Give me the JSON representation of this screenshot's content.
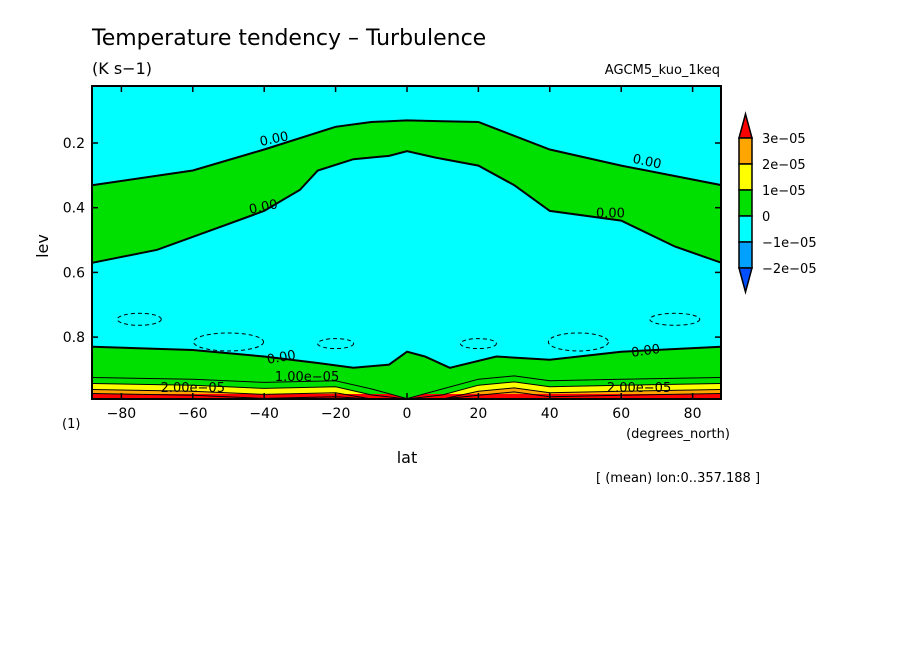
{
  "chart_data": {
    "type": "contour",
    "title": "Temperature tendency – Turbulence",
    "units": "(K s−1)",
    "model": "AGCM5_kuo_1keq",
    "xlabel": "lat",
    "xunits": "(degrees_north)",
    "ylabel": "lev",
    "yunits": "(1)",
    "note": "[ (mean) lon:0..357.188 ]",
    "xlim": [
      -88,
      88
    ],
    "ylim": [
      0.99,
      0.025
    ],
    "xticks": [
      "−80",
      "−60",
      "−40",
      "−20",
      "0",
      "20",
      "40",
      "60",
      "80"
    ],
    "xtick_values": [
      -80,
      -60,
      -40,
      -20,
      0,
      20,
      40,
      60,
      80
    ],
    "yticks": [
      "0.2",
      "0.4",
      "0.6",
      "0.8"
    ],
    "ytick_values": [
      0.2,
      0.4,
      0.6,
      0.8
    ],
    "colorbar": {
      "labels": [
        "3e−05",
        "2e−05",
        "1e−05",
        "0",
        "−1e−05",
        "−2e−05"
      ],
      "colors": [
        "#ff0000",
        "#ffa500",
        "#ffff00",
        "#00e000",
        "#00ffff",
        "#00a0ff",
        "#0050ff"
      ]
    },
    "contour_labels": [
      "0.00",
      "1.00e−05",
      "2.00e−05"
    ],
    "zero_contour_upper_top": {
      "lat": [
        -88,
        -60,
        -40,
        -20,
        -10,
        0,
        10,
        20,
        40,
        60,
        88
      ],
      "lev": [
        0.33,
        0.285,
        0.22,
        0.15,
        0.135,
        0.13,
        0.133,
        0.135,
        0.22,
        0.27,
        0.33
      ]
    },
    "zero_contour_upper_bottom": {
      "lat": [
        -88,
        -70,
        -50,
        -40,
        -30,
        -25,
        -15,
        -5,
        0,
        8,
        20,
        30,
        40,
        60,
        75,
        88
      ],
      "lev": [
        0.57,
        0.53,
        0.45,
        0.41,
        0.345,
        0.285,
        0.25,
        0.24,
        0.225,
        0.245,
        0.27,
        0.33,
        0.41,
        0.44,
        0.52,
        0.57
      ]
    },
    "zero_contour_lower": {
      "lat": [
        -88,
        -60,
        -40,
        -25,
        -15,
        -5,
        0,
        5,
        12,
        25,
        40,
        60,
        88
      ],
      "lev": [
        0.83,
        0.84,
        0.86,
        0.88,
        0.895,
        0.885,
        0.845,
        0.86,
        0.895,
        0.86,
        0.87,
        0.845,
        0.83
      ]
    },
    "contour_1e-05": {
      "lat": [
        -88,
        -60,
        -40,
        -20,
        -10,
        0,
        10,
        20,
        30,
        40,
        60,
        88
      ],
      "lev": [
        0.925,
        0.93,
        0.94,
        0.935,
        0.96,
        0.99,
        0.96,
        0.93,
        0.92,
        0.935,
        0.93,
        0.925
      ]
    }
  }
}
